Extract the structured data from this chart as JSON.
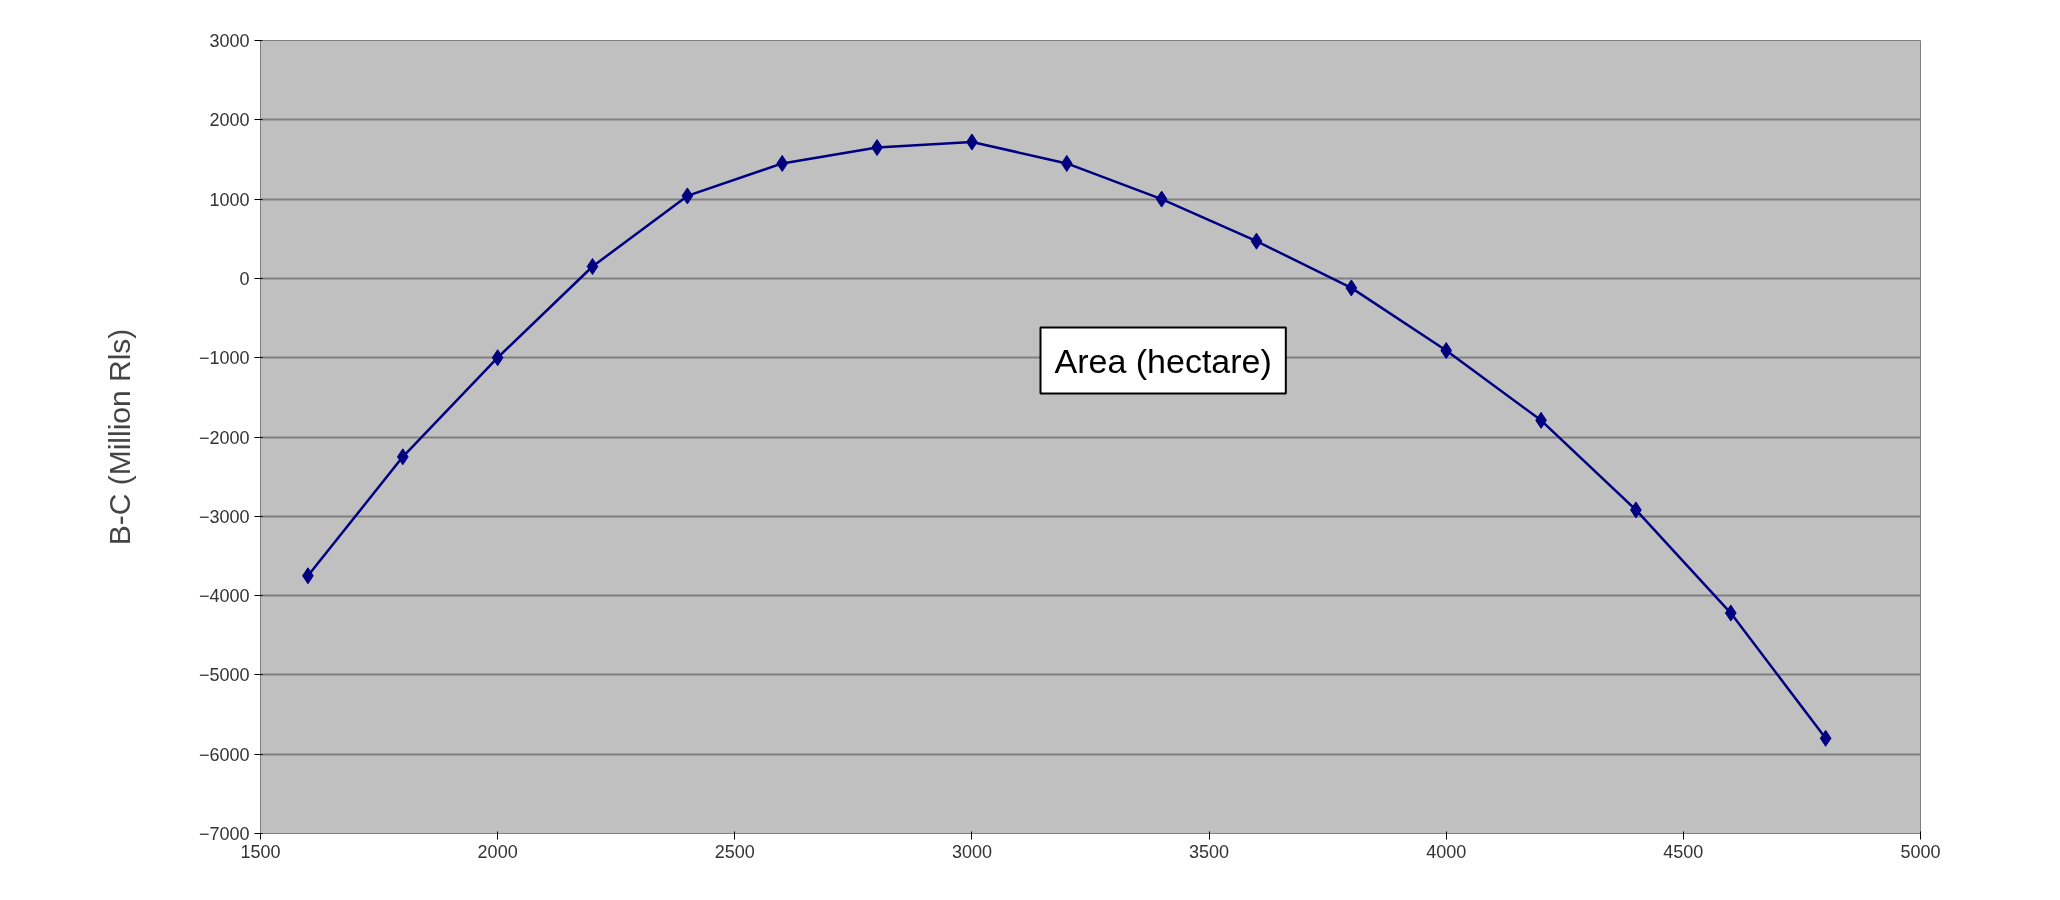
{
  "chart_data": {
    "type": "line",
    "xlabel": "Area (hectare)",
    "ylabel": "B-C (Million Rls)",
    "x": [
      1600,
      1800,
      2000,
      2200,
      2400,
      2600,
      2800,
      3000,
      3200,
      3400,
      3600,
      3800,
      4000,
      4200,
      4400,
      4600,
      4800
    ],
    "series": [
      {
        "color": "#000080",
        "values": [
          -3750,
          -2250,
          -1000,
          150,
          1040,
          1450,
          1650,
          1720,
          1450,
          1000,
          470,
          -120,
          -910,
          -1790,
          -2920,
          -4220,
          -5800
        ]
      }
    ],
    "xlim": [
      1500,
      5000
    ],
    "xticks": [
      1500,
      2000,
      2500,
      3000,
      3500,
      4000,
      4500,
      5000
    ],
    "ylim": [
      -7000,
      3000
    ],
    "yticks": [
      -7000,
      -6000,
      -5000,
      -4000,
      -3000,
      -2000,
      -1000,
      0,
      1000,
      2000,
      3000
    ],
    "grid": "y",
    "marker": "diamond",
    "line_style": "solid"
  }
}
